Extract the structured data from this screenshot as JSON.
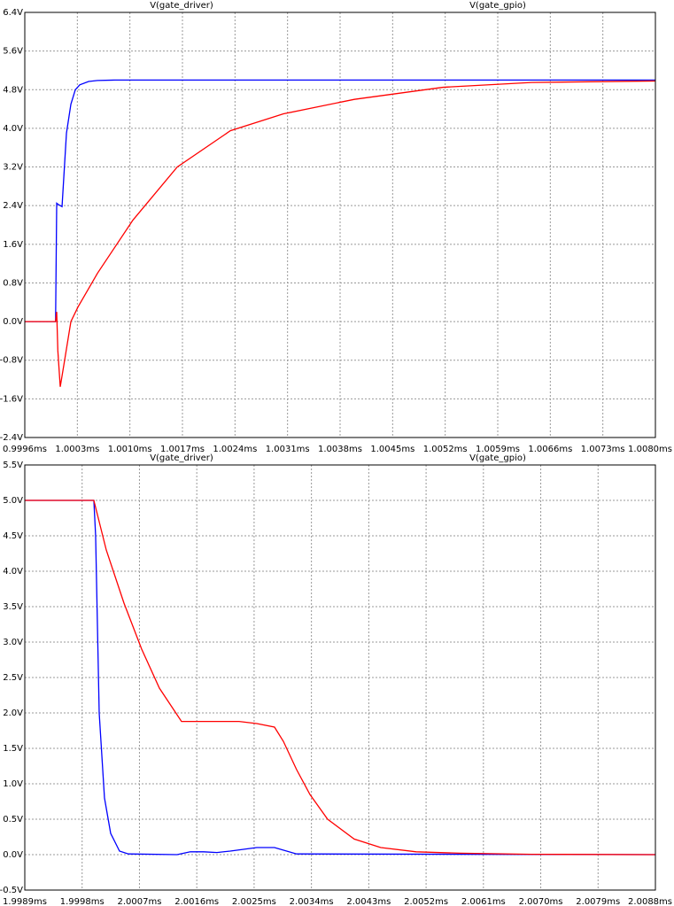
{
  "chart_data": [
    {
      "type": "line",
      "xlim": [
        0.9996,
        1.008
      ],
      "ylim": [
        -2.4,
        6.4
      ],
      "grid": true,
      "xticks": [
        {
          "value": 0.9996,
          "label": "0.9996ms"
        },
        {
          "value": 1.0003,
          "label": "1.0003ms"
        },
        {
          "value": 1.001,
          "label": "1.0010ms"
        },
        {
          "value": 1.0017,
          "label": "1.0017ms"
        },
        {
          "value": 1.0024,
          "label": "1.0024ms"
        },
        {
          "value": 1.0031,
          "label": "1.0031ms"
        },
        {
          "value": 1.0038,
          "label": "1.0038ms"
        },
        {
          "value": 1.0045,
          "label": "1.0045ms"
        },
        {
          "value": 1.0052,
          "label": "1.0052ms"
        },
        {
          "value": 1.0059,
          "label": "1.0059ms"
        },
        {
          "value": 1.0066,
          "label": "1.0066ms"
        },
        {
          "value": 1.0073,
          "label": "1.0073ms"
        },
        {
          "value": 1.008,
          "label": "1.0080ms"
        }
      ],
      "yticks": [
        {
          "value": 6.4,
          "label": "6.4V"
        },
        {
          "value": 5.6,
          "label": "5.6V"
        },
        {
          "value": 4.8,
          "label": "4.8V"
        },
        {
          "value": 4.0,
          "label": "4.0V"
        },
        {
          "value": 3.2,
          "label": "3.2V"
        },
        {
          "value": 2.4,
          "label": "2.4V"
        },
        {
          "value": 1.6,
          "label": "1.6V"
        },
        {
          "value": 0.8,
          "label": "0.8V"
        },
        {
          "value": 0,
          "label": "0.0V"
        },
        {
          "value": -0.8,
          "label": "-0.8V"
        },
        {
          "value": -1.6,
          "label": "-1.6V"
        },
        {
          "value": -2.4,
          "label": "-2.4V"
        }
      ],
      "series": [
        {
          "name": "V(gate_driver)",
          "color": "#0000ff",
          "x": [
            0.9996,
            1.00001,
            1.000025,
            1.00005,
            1.000072,
            1.000096,
            1.00012,
            1.000155,
            1.000214,
            1.000273,
            1.000332,
            1.00045,
            1.000568,
            1.000804,
            1.008
          ],
          "values": [
            0,
            0,
            2.45,
            2.42,
            2.4,
            2.38,
            3.0,
            3.9,
            4.5,
            4.8,
            4.9,
            4.97,
            4.99,
            5.0,
            5.0
          ]
        },
        {
          "name": "V(gate_gpio)",
          "color": "#ff0000",
          "x": [
            0.9996,
            1.00001,
            1.000025,
            1.00004,
            1.000072,
            1.00012,
            1.000214,
            1.000308,
            1.000568,
            1.00104,
            1.00163,
            1.002338,
            1.003046,
            1.00399,
            1.00517,
            1.00635,
            1.008
          ],
          "values": [
            0,
            0,
            0.2,
            -0.6,
            -1.35,
            -0.9,
            0,
            0.3,
            1.0,
            2.1,
            3.2,
            3.95,
            4.3,
            4.6,
            4.85,
            4.95,
            4.98
          ]
        }
      ]
    },
    {
      "type": "line",
      "xlim": [
        1.9989,
        2.0088
      ],
      "ylim": [
        -0.5,
        5.5
      ],
      "grid": true,
      "xticks": [
        {
          "value": 1.9989,
          "label": "1.9989ms"
        },
        {
          "value": 1.9998,
          "label": "1.9998ms"
        },
        {
          "value": 2.0007,
          "label": "2.0007ms"
        },
        {
          "value": 2.0016,
          "label": "2.0016ms"
        },
        {
          "value": 2.0025,
          "label": "2.0025ms"
        },
        {
          "value": 2.0034,
          "label": "2.0034ms"
        },
        {
          "value": 2.0043,
          "label": "2.0043ms"
        },
        {
          "value": 2.0052,
          "label": "2.0052ms"
        },
        {
          "value": 2.0061,
          "label": "2.0061ms"
        },
        {
          "value": 2.007,
          "label": "2.0070ms"
        },
        {
          "value": 2.0079,
          "label": "2.0079ms"
        },
        {
          "value": 2.0088,
          "label": "2.0088ms"
        }
      ],
      "yticks": [
        {
          "value": 5.5,
          "label": "5.5V"
        },
        {
          "value": 5.0,
          "label": "5.0V"
        },
        {
          "value": 4.5,
          "label": "4.5V"
        },
        {
          "value": 4.0,
          "label": "4.0V"
        },
        {
          "value": 3.5,
          "label": "3.5V"
        },
        {
          "value": 3.0,
          "label": "3.0V"
        },
        {
          "value": 2.5,
          "label": "2.5V"
        },
        {
          "value": 2.0,
          "label": "2.0V"
        },
        {
          "value": 1.5,
          "label": "1.5V"
        },
        {
          "value": 1.0,
          "label": "1.0V"
        },
        {
          "value": 0.5,
          "label": "0.5V"
        },
        {
          "value": 0,
          "label": "0.0V"
        },
        {
          "value": -0.5,
          "label": "-0.5V"
        }
      ],
      "series": [
        {
          "name": "V(gate_driver)",
          "color": "#0000ff",
          "x": [
            1.9989,
            1.999984,
            2.000012,
            2.000068,
            2.000151,
            2.000248,
            2.000387,
            2.000526,
            2.001291,
            2.001499,
            2.001708,
            2.001916,
            2.002125,
            2.002542,
            2.00282,
            2.003167,
            2.0088
          ],
          "values": [
            5.0,
            5.0,
            4.5,
            2.0,
            0.8,
            0.3,
            0.05,
            0.01,
            0.0,
            0.04,
            0.04,
            0.03,
            0.05,
            0.1,
            0.1,
            0.01,
            0.0
          ]
        },
        {
          "name": "V(gate_gpio)",
          "color": "#ff0000",
          "x": [
            1.9989,
            1.999984,
            2.000179,
            2.000457,
            2.000735,
            2.001013,
            2.00136,
            2.002264,
            2.002542,
            2.00282,
            2.002959,
            2.003167,
            2.003376,
            2.003654,
            2.004071,
            2.004488,
            2.005044,
            2.005739,
            2.006851,
            2.0088
          ],
          "values": [
            5.0,
            5.0,
            4.3,
            3.55,
            2.9,
            2.35,
            1.88,
            1.88,
            1.85,
            1.8,
            1.6,
            1.2,
            0.85,
            0.5,
            0.22,
            0.1,
            0.04,
            0.02,
            0.005,
            0.0
          ]
        }
      ]
    }
  ]
}
